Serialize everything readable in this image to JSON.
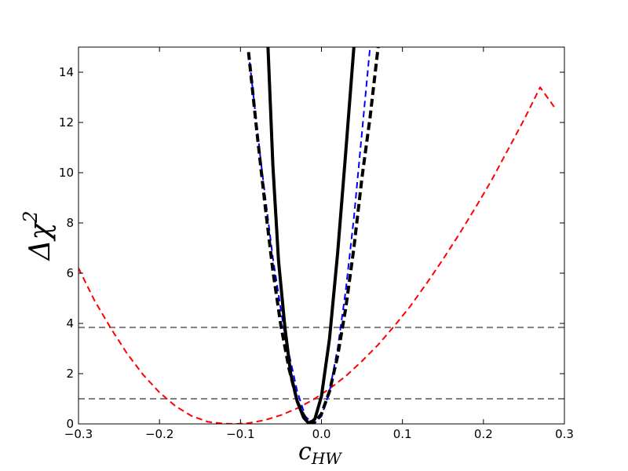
{
  "chart_data": {
    "type": "line",
    "title": "",
    "xlabel": "c",
    "xlabel_sub": "HW",
    "ylabel": "Δχ",
    "ylabel_sup": "2",
    "xlim": [
      -0.3,
      0.3
    ],
    "ylim": [
      0,
      15
    ],
    "grid": false,
    "legend": "none",
    "xticks": [
      {
        "value": -0.3,
        "label": "−0.3"
      },
      {
        "value": -0.2,
        "label": "−0.2"
      },
      {
        "value": -0.1,
        "label": "−0.1"
      },
      {
        "value": 0.0,
        "label": "0.0"
      },
      {
        "value": 0.1,
        "label": "0.1"
      },
      {
        "value": 0.2,
        "label": "0.2"
      },
      {
        "value": 0.3,
        "label": "0.3"
      }
    ],
    "yticks": [
      {
        "value": 0,
        "label": "0"
      },
      {
        "value": 2,
        "label": "2"
      },
      {
        "value": 4,
        "label": "4"
      },
      {
        "value": 6,
        "label": "6"
      },
      {
        "value": 8,
        "label": "8"
      },
      {
        "value": 10,
        "label": "10"
      },
      {
        "value": 12,
        "label": "12"
      },
      {
        "value": 14,
        "label": "14"
      }
    ],
    "hlines": [
      {
        "y": 1.0,
        "color": "#808080",
        "style": "dashed"
      },
      {
        "y": 3.84,
        "color": "#808080",
        "style": "dashed"
      }
    ],
    "series": [
      {
        "color": "#ff0000",
        "style": "dashed",
        "width": 2,
        "x": [
          -0.3,
          -0.28,
          -0.26,
          -0.24,
          -0.22,
          -0.2,
          -0.18,
          -0.16,
          -0.14,
          -0.12,
          -0.105,
          -0.09,
          -0.07,
          -0.05,
          -0.03,
          -0.01,
          0.01,
          0.03,
          0.05,
          0.07,
          0.09,
          0.11,
          0.13,
          0.15,
          0.17,
          0.19,
          0.21,
          0.23,
          0.25,
          0.27,
          0.29
        ],
        "y": [
          6.2,
          4.9,
          3.8,
          2.8,
          1.95,
          1.25,
          0.7,
          0.31,
          0.08,
          0.01,
          0.0,
          0.03,
          0.15,
          0.35,
          0.62,
          0.97,
          1.4,
          1.9,
          2.5,
          3.15,
          3.9,
          4.7,
          5.6,
          6.55,
          7.55,
          8.6,
          9.7,
          10.9,
          12.1,
          13.4,
          12.5
        ]
      },
      {
        "color": "#0000ff",
        "style": "dashed",
        "width": 2,
        "x": [
          -0.09,
          -0.075,
          -0.06,
          -0.045,
          -0.03,
          -0.02,
          -0.01,
          0.0,
          0.01,
          0.02,
          0.03,
          0.04,
          0.05,
          0.06
        ],
        "y": [
          14.8,
          10.5,
          6.6,
          3.5,
          1.3,
          0.3,
          0.0,
          0.3,
          1.3,
          3.0,
          5.3,
          8.2,
          11.6,
          15.0
        ]
      },
      {
        "color": "#000000",
        "style": "solid",
        "width": 4,
        "x": [
          -0.066,
          -0.06,
          -0.053,
          -0.045,
          -0.038,
          -0.03,
          -0.022,
          -0.015,
          -0.008,
          0.0,
          0.01,
          0.02,
          0.03,
          0.04
        ],
        "y": [
          15.0,
          10.3,
          6.5,
          3.8,
          2.0,
          0.9,
          0.25,
          0.0,
          0.2,
          1.1,
          3.4,
          6.8,
          10.8,
          15.0
        ]
      },
      {
        "color": "#000000",
        "style": "dashed",
        "width": 4,
        "x": [
          -0.09,
          -0.08,
          -0.07,
          -0.06,
          -0.05,
          -0.04,
          -0.03,
          -0.02,
          -0.01,
          0.0,
          0.01,
          0.02,
          0.03,
          0.04,
          0.05,
          0.06,
          0.07
        ],
        "y": [
          14.8,
          11.7,
          8.8,
          6.1,
          3.9,
          2.2,
          0.9,
          0.2,
          0.0,
          0.4,
          1.3,
          2.7,
          4.6,
          7.0,
          9.8,
          12.2,
          15.0
        ]
      }
    ]
  }
}
